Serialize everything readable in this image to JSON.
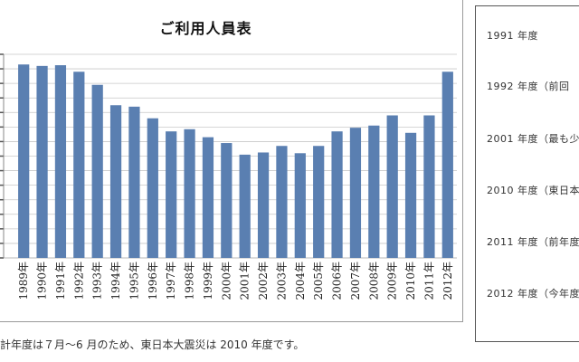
{
  "chart_data": {
    "type": "bar",
    "title": "ご利用人員表",
    "categories": [
      "1989年",
      "1990年",
      "1991年",
      "1992年",
      "1993年",
      "1994年",
      "1995年",
      "1996年",
      "1997年",
      "1998年",
      "1999年",
      "2000年",
      "2001年",
      "2002年",
      "2003年",
      "2004年",
      "2005年",
      "2006年",
      "2007年",
      "2008年",
      "2009年",
      "2010年",
      "2011年",
      "2012年"
    ],
    "values": [
      13.3,
      13.2,
      13.25,
      12.8,
      11.9,
      10.5,
      10.4,
      9.6,
      8.7,
      8.85,
      8.3,
      7.9,
      7.1,
      7.25,
      7.7,
      7.2,
      7.7,
      8.7,
      8.95,
      9.1,
      9.8,
      8.6,
      9.8,
      12.8
    ],
    "ylim": [
      0,
      14
    ],
    "grid": true,
    "bar_color": "#5a7fb1",
    "grid_color": "#c8c8c8"
  },
  "footnote": "計年度は７月～6 月のため、東日本大震災は 2010 年度です。",
  "side_panel": {
    "items": [
      "1991 年度",
      "1992 年度（前回",
      "2001 年度（最も少",
      "2010 年度（東日本",
      "2011 年度（前年度",
      "2012 年度（今年度"
    ]
  }
}
